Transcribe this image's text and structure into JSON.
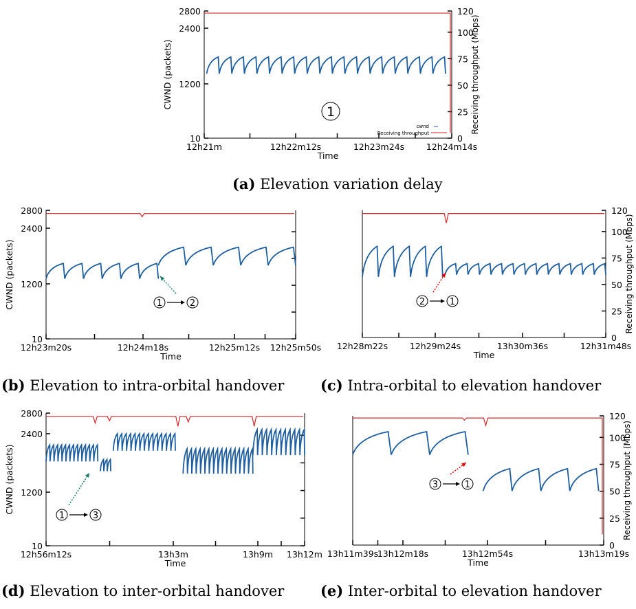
{
  "colors": {
    "cwnd": "#1f5fa0",
    "throughput": "#d62728",
    "axis": "#000000"
  },
  "captions": {
    "a": {
      "tag": "(a)",
      "text": "Elevation variation delay"
    },
    "b": {
      "tag": "(b)",
      "text": "Elevation to intra-orbital handover"
    },
    "c": {
      "tag": "(c)",
      "text": "Intra-orbital to elevation handover"
    },
    "d": {
      "tag": "(d)",
      "text": "Elevation to inter-orbital handover"
    },
    "e": {
      "tag": "(e)",
      "text": "Inter-orbital to elevation handover"
    }
  },
  "chart_data": [
    {
      "id": "a",
      "type": "line",
      "xlabel": "Time",
      "ylabel": "CWND (packets)",
      "y2label": "Receiving throughput (Mbps)",
      "x_ticks": [
        "12h21m",
        "12h22m12s",
        "12h23m24s",
        "12h24m14s"
      ],
      "y_ticks": [
        "10",
        "1200",
        "2400",
        "2800"
      ],
      "y_ticks_values": [
        10,
        1200,
        2400,
        2800
      ],
      "y2_ticks": [
        "0",
        "25",
        "50",
        "75",
        "100",
        "120"
      ],
      "y2_ticks_values": [
        0,
        25,
        50,
        75,
        100,
        120
      ],
      "ylim": [
        10,
        2800
      ],
      "y2lim": [
        0,
        120
      ],
      "legend": [
        "cwnd",
        "Receiving throughput"
      ],
      "legend_position": "bottom-right",
      "annotations": [
        "1"
      ],
      "series": [
        {
          "name": "cwnd",
          "segments": [
            {
              "x0": 0.01,
              "x1": 0.975,
              "n": 19,
              "low": 1420,
              "high": 1780
            }
          ]
        },
        {
          "name": "Receiving throughput",
          "baseline": 118,
          "final_drop": 5
        }
      ]
    },
    {
      "id": "b",
      "type": "line",
      "xlabel": "Time",
      "ylabel": "CWND (packets)",
      "y2label": "",
      "x_ticks": [
        "12h23m20s",
        "12h24m18s",
        "12h25m12s",
        "12h25m50s"
      ],
      "y_ticks": [
        "10",
        "1200",
        "2400",
        "2800"
      ],
      "y_ticks_values": [
        10,
        1200,
        2400,
        2800
      ],
      "y2_ticks": [],
      "y2_ticks_values": [],
      "ylim": [
        10,
        2800
      ],
      "y2lim": [
        0,
        120
      ],
      "annotations": [
        "1",
        "2"
      ],
      "series": [
        {
          "name": "cwnd",
          "segments": [
            {
              "x0": 0.0,
              "x1": 0.45,
              "n": 6,
              "low": 1310,
              "high": 1640
            },
            {
              "x0": 0.45,
              "x1": 1.0,
              "n": 5,
              "low": 1600,
              "high": 1990
            }
          ]
        },
        {
          "name": "Receiving throughput",
          "baseline": 117,
          "dips": [
            {
              "x": 0.385,
              "value": 114
            }
          ]
        }
      ]
    },
    {
      "id": "c",
      "type": "line",
      "xlabel": "Time",
      "ylabel": "",
      "y2label": "Receiving throughput (Mbps)",
      "x_ticks": [
        "12h28m22s",
        "12h29m24s",
        "13h30m36s",
        "12h31m48s"
      ],
      "y_ticks": [],
      "y_ticks_values": [],
      "y2_ticks": [
        "0",
        "25",
        "50",
        "75",
        "100",
        "120"
      ],
      "y2_ticks_values": [
        0,
        25,
        50,
        75,
        100,
        120
      ],
      "ylim": [
        10,
        2800
      ],
      "y2lim": [
        0,
        120
      ],
      "annotations": [
        "2",
        "1"
      ],
      "series": [
        {
          "name": "cwnd",
          "segments": [
            {
              "x0": 0.0,
              "x1": 0.33,
              "n": 5,
              "low": 1330,
              "high": 2000
            },
            {
              "x0": 0.34,
              "x1": 1.0,
              "n": 14,
              "low": 1380,
              "high": 1620
            }
          ]
        },
        {
          "name": "Receiving throughput",
          "baseline": 117,
          "dips": [
            {
              "x": 0.345,
              "value": 108
            }
          ]
        }
      ]
    },
    {
      "id": "d",
      "type": "line",
      "xlabel": "Time",
      "ylabel": "CWND (packets)",
      "y2label": "",
      "x_ticks": [
        "12h56m12s",
        "13h3m",
        "13h9m",
        "13h12m"
      ],
      "y_ticks": [
        "10",
        "1200",
        "2400",
        "2800"
      ],
      "y_ticks_values": [
        10,
        1200,
        2400,
        2800
      ],
      "y2_ticks": [],
      "y2_ticks_values": [],
      "ylim": [
        10,
        2800
      ],
      "y2lim": [
        0,
        120
      ],
      "annotations": [
        "1",
        "3"
      ],
      "series": [
        {
          "name": "cwnd",
          "segments": [
            {
              "x0": 0.0,
              "x1": 0.2,
              "n": 13,
              "low": 1830,
              "high": 2170
            },
            {
              "x0": 0.21,
              "x1": 0.25,
              "n": 3,
              "low": 1630,
              "high": 1870
            },
            {
              "x0": 0.26,
              "x1": 0.5,
              "n": 14,
              "low": 2050,
              "high": 2400
            },
            {
              "x0": 0.53,
              "x1": 0.8,
              "n": 16,
              "low": 1580,
              "high": 2090
            },
            {
              "x0": 0.8,
              "x1": 1.0,
              "n": 11,
              "low": 1960,
              "high": 2480
            }
          ]
        },
        {
          "name": "Receiving throughput",
          "baseline": 117,
          "dips": [
            {
              "x": 0.19,
              "value": 111
            },
            {
              "x": 0.245,
              "value": 113
            },
            {
              "x": 0.51,
              "value": 108
            },
            {
              "x": 0.55,
              "value": 112
            },
            {
              "x": 0.805,
              "value": 108
            }
          ]
        }
      ]
    },
    {
      "id": "e",
      "type": "line",
      "xlabel": "Time",
      "ylabel": "",
      "y2label": "Receiving throughput (Mbps)",
      "x_ticks": [
        "13h11m39s",
        "13h12m18s",
        "13h12m54s",
        "13h13m19s"
      ],
      "y_ticks": [],
      "y_ticks_values": [],
      "y2_ticks": [
        "0",
        "25",
        "50",
        "75",
        "100",
        "120"
      ],
      "y2_ticks_values": [
        0,
        25,
        50,
        75,
        100,
        120
      ],
      "ylim": [
        10,
        2800
      ],
      "y2lim": [
        0,
        120
      ],
      "annotations": [
        "3",
        "1"
      ],
      "series": [
        {
          "name": "cwnd",
          "segments": [
            {
              "x0": 0.0,
              "x1": 0.46,
              "n": 3,
              "low": 1950,
              "high": 2450
            },
            {
              "x0": 0.52,
              "x1": 0.98,
              "n": 4,
              "low": 1170,
              "high": 1650
            }
          ]
        },
        {
          "name": "Receiving throughput",
          "baseline": 118,
          "final_drop": 10,
          "dips": [
            {
              "x": 0.445,
              "value": 116
            },
            {
              "x": 0.53,
              "value": 111
            }
          ]
        }
      ]
    }
  ]
}
